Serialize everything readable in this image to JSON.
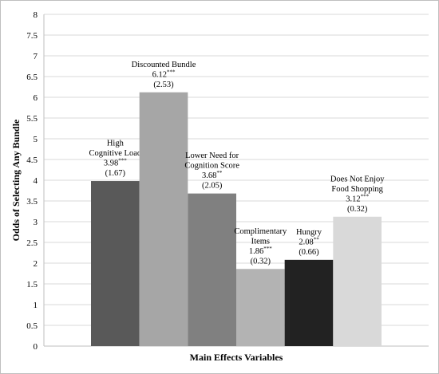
{
  "chart_data": {
    "type": "bar",
    "y_label": "Odds of Selecting Any Bundle",
    "x_label": "Main Effects Variables",
    "categories": [
      "High\nCognitive Load",
      "Discounted Bundle",
      "Lower Need for\nCognition Score",
      "Complimentary\nItems",
      "Hungry",
      "Does Not Enjoy\nFood Shopping"
    ],
    "values": [
      3.98,
      6.12,
      3.68,
      1.86,
      2.08,
      3.12
    ],
    "significance": [
      "***",
      "***",
      "**",
      "***",
      "**",
      "***"
    ],
    "error_labels": [
      "(1.67)",
      "(2.53)",
      "(2.05)",
      "(0.32)",
      "(0.66)",
      "(0.32)"
    ],
    "colors": [
      "#595959",
      "#a6a6a6",
      "#808080",
      "#b3b3b3",
      "#222222",
      "#d9d9d9"
    ],
    "ylim": [
      0,
      8
    ],
    "yticks": [
      0,
      0.5,
      1,
      1.5,
      2,
      2.5,
      3,
      3.5,
      4,
      4.5,
      5,
      5.5,
      6,
      6.5,
      7,
      7.5,
      8
    ],
    "grid": true
  }
}
